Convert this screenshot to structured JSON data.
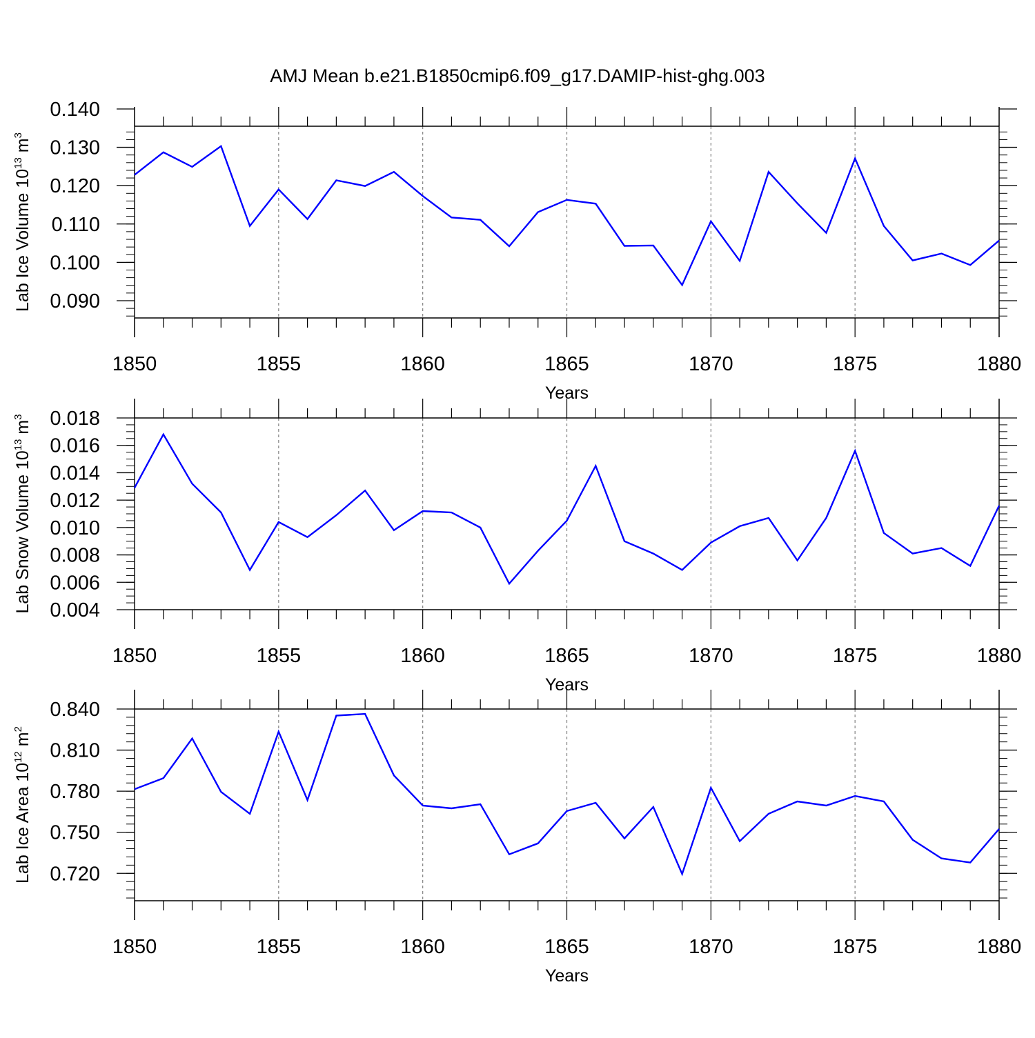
{
  "title": "AMJ Mean b.e21.B1850cmip6.f09_g17.DAMIP-hist-ghg.003",
  "colors": {
    "line": "#0000ff",
    "axis": "#000000",
    "grid": "#808080"
  },
  "chart_data": [
    {
      "type": "line",
      "ylabel": {
        "text": "Lab Ice Volume 10",
        "exponent": "13",
        "unit": " m",
        "unit_exponent": "3"
      },
      "xlabel": "Years",
      "xlim": [
        1850,
        1880
      ],
      "ylim": [
        0.0855,
        0.1355
      ],
      "xticks": [
        "1850",
        "1855",
        "1860",
        "1865",
        "1870",
        "1875",
        "1880"
      ],
      "yticks": [
        "0.090",
        "0.100",
        "0.110",
        "0.120",
        "0.130",
        "0.140"
      ],
      "grid": "vertical dashed at major x ticks",
      "x": [
        1850,
        1851,
        1852,
        1853,
        1854,
        1855,
        1856,
        1857,
        1858,
        1859,
        1860,
        1861,
        1862,
        1863,
        1864,
        1865,
        1866,
        1867,
        1868,
        1869,
        1870,
        1871,
        1872,
        1873,
        1874,
        1875,
        1876,
        1877,
        1878,
        1879,
        1880
      ],
      "values": [
        0.1228,
        0.1287,
        0.1249,
        0.1303,
        0.1095,
        0.119,
        0.1113,
        0.1214,
        0.1199,
        0.1236,
        0.1173,
        0.1117,
        0.1111,
        0.1042,
        0.1131,
        0.1163,
        0.1153,
        0.1043,
        0.1044,
        0.0941,
        0.1107,
        0.1004,
        0.1236,
        0.1154,
        0.1077,
        0.1271,
        0.1095,
        0.1005,
        0.1023,
        0.0993,
        0.1057
      ]
    },
    {
      "type": "line",
      "ylabel": {
        "text": "Lab Snow Volume 10",
        "exponent": "13",
        "unit": " m",
        "unit_exponent": "3"
      },
      "xlabel": "Years",
      "xlim": [
        1850,
        1880
      ],
      "ylim": [
        0.004,
        0.018
      ],
      "xticks": [
        "1850",
        "1855",
        "1860",
        "1865",
        "1870",
        "1875",
        "1880"
      ],
      "yticks": [
        "0.004",
        "0.006",
        "0.008",
        "0.010",
        "0.012",
        "0.014",
        "0.016",
        "0.018"
      ],
      "grid": "vertical dashed at major x ticks",
      "x": [
        1850,
        1851,
        1852,
        1853,
        1854,
        1855,
        1856,
        1857,
        1858,
        1859,
        1860,
        1861,
        1862,
        1863,
        1864,
        1865,
        1866,
        1867,
        1868,
        1869,
        1870,
        1871,
        1872,
        1873,
        1874,
        1875,
        1876,
        1877,
        1878,
        1879,
        1880
      ],
      "values": [
        0.0129,
        0.0168,
        0.0132,
        0.0111,
        0.0069,
        0.0104,
        0.0093,
        0.0109,
        0.0127,
        0.0098,
        0.0112,
        0.0111,
        0.01,
        0.0059,
        0.0083,
        0.0105,
        0.0145,
        0.009,
        0.0081,
        0.0069,
        0.0089,
        0.0101,
        0.0107,
        0.0076,
        0.0107,
        0.0156,
        0.0096,
        0.0081,
        0.0085,
        0.0072,
        0.0116
      ]
    },
    {
      "type": "line",
      "ylabel": {
        "text": "Lab Ice Area 10",
        "exponent": "12",
        "unit": " m",
        "unit_exponent": "2"
      },
      "xlabel": "Years",
      "xlim": [
        1850,
        1880
      ],
      "ylim": [
        0.7,
        0.84
      ],
      "xticks": [
        "1850",
        "1855",
        "1860",
        "1865",
        "1870",
        "1875",
        "1880"
      ],
      "yticks": [
        "0.720",
        "0.750",
        "0.780",
        "0.810",
        "0.840"
      ],
      "grid": "vertical dashed at major x ticks",
      "x": [
        1850,
        1851,
        1852,
        1853,
        1854,
        1855,
        1856,
        1857,
        1858,
        1859,
        1860,
        1861,
        1862,
        1863,
        1864,
        1865,
        1866,
        1867,
        1868,
        1869,
        1870,
        1871,
        1872,
        1873,
        1874,
        1875,
        1876,
        1877,
        1878,
        1879,
        1880
      ],
      "values": [
        0.7815,
        0.7895,
        0.8185,
        0.7795,
        0.7635,
        0.8235,
        0.7735,
        0.8352,
        0.8364,
        0.7915,
        0.7695,
        0.7675,
        0.7705,
        0.7339,
        0.7419,
        0.7655,
        0.7715,
        0.7455,
        0.7685,
        0.7195,
        0.7825,
        0.7435,
        0.7635,
        0.7725,
        0.7695,
        0.7765,
        0.7725,
        0.7445,
        0.7309,
        0.7279,
        0.7525
      ]
    }
  ]
}
